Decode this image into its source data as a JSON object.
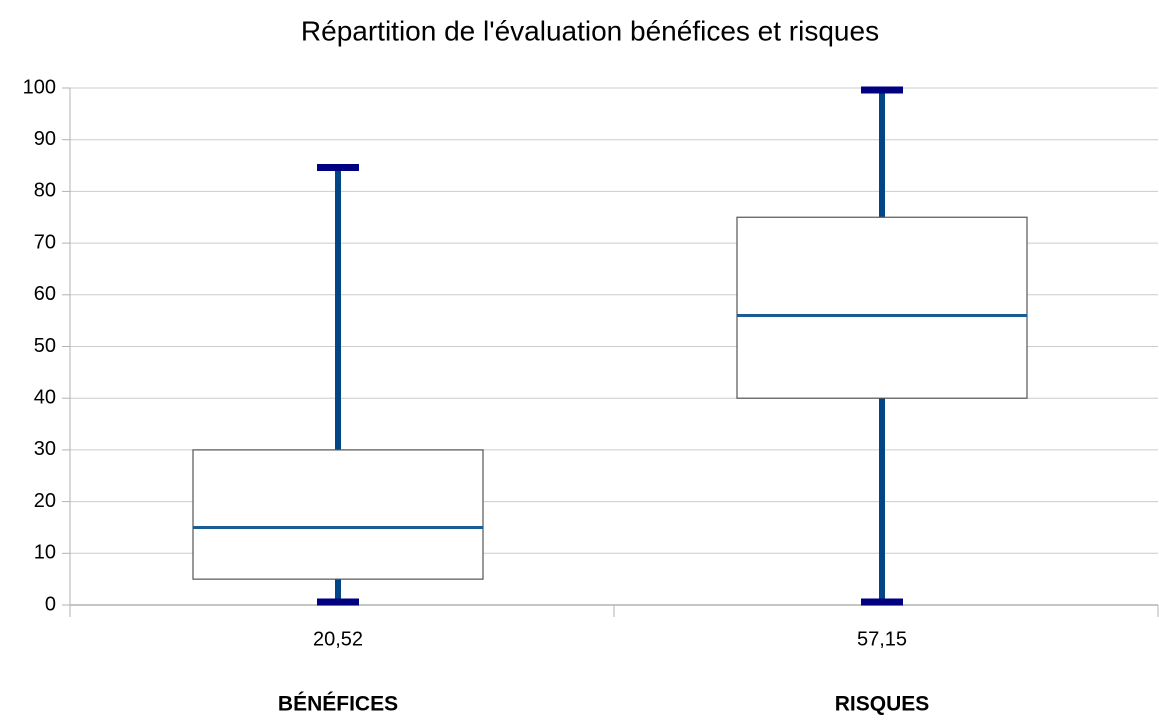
{
  "chart_data": {
    "type": "box",
    "title": "Répartition de l'évaluation bénéfices et risques",
    "categories": [
      "BÉNÉFICES",
      "RISQUES"
    ],
    "x_tick_labels": [
      "20,52",
      "57,15"
    ],
    "boxes": [
      {
        "min": 0,
        "q1": 5,
        "median": 15,
        "q3": 30,
        "max": 85
      },
      {
        "min": 0,
        "q1": 40,
        "median": 56,
        "q3": 75,
        "max": 100
      }
    ],
    "whisker_color": "#004586",
    "cap_color": "#000080",
    "median_color": "#1a5c94",
    "box_color": "#555555",
    "ylim": [
      0,
      100
    ],
    "yticks": [
      0,
      10,
      20,
      30,
      40,
      50,
      60,
      70,
      80,
      90,
      100
    ],
    "grid": true
  }
}
